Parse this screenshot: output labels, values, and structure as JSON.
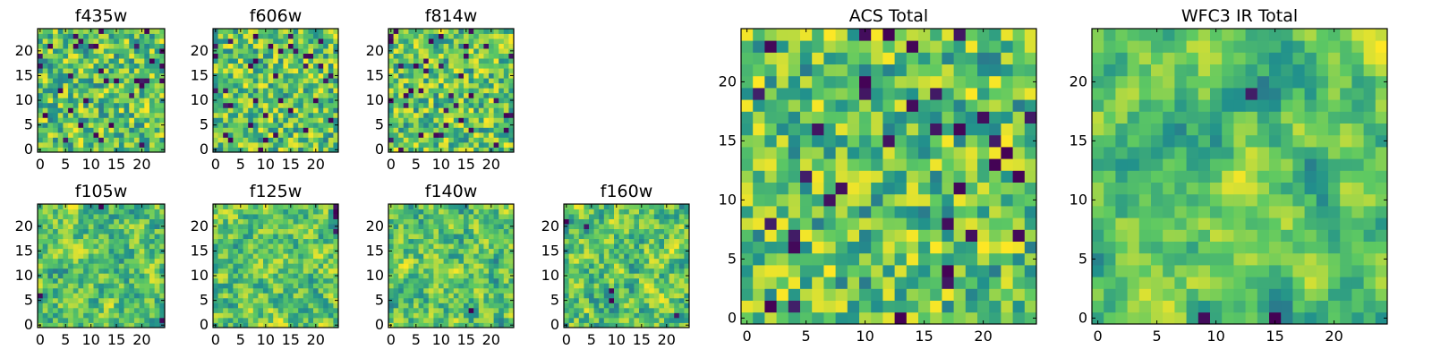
{
  "figure": {
    "colormap": "viridis",
    "colormap_stops": [
      "#440154",
      "#3b528b",
      "#21918c",
      "#5ec962",
      "#fde725"
    ]
  },
  "chart_data": [
    {
      "type": "heatmap",
      "title": "f435w",
      "grid": [
        25,
        25
      ],
      "xticks": [
        "0",
        "5",
        "10",
        "15",
        "20"
      ],
      "yticks": [
        "0",
        "5",
        "10",
        "15",
        "20"
      ],
      "xlim": [
        0,
        25
      ],
      "ylim": [
        0,
        25
      ],
      "value_range": [
        0,
        1
      ],
      "texture_seed": 11,
      "smoothness": 0
    },
    {
      "type": "heatmap",
      "title": "f606w",
      "grid": [
        25,
        25
      ],
      "xticks": [
        "0",
        "5",
        "10",
        "15",
        "20"
      ],
      "yticks": [
        "0",
        "5",
        "10",
        "15",
        "20"
      ],
      "xlim": [
        0,
        25
      ],
      "ylim": [
        0,
        25
      ],
      "value_range": [
        0,
        1
      ],
      "texture_seed": 23,
      "smoothness": 0
    },
    {
      "type": "heatmap",
      "title": "f814w",
      "grid": [
        25,
        25
      ],
      "xticks": [
        "0",
        "5",
        "10",
        "15",
        "20"
      ],
      "yticks": [
        "0",
        "5",
        "10",
        "15",
        "20"
      ],
      "xlim": [
        0,
        25
      ],
      "ylim": [
        0,
        25
      ],
      "value_range": [
        0,
        1
      ],
      "texture_seed": 37,
      "smoothness": 0
    },
    {
      "type": "heatmap",
      "title": "f105w",
      "grid": [
        25,
        25
      ],
      "xticks": [
        "0",
        "5",
        "10",
        "15",
        "20"
      ],
      "yticks": [
        "0",
        "5",
        "10",
        "15",
        "20"
      ],
      "xlim": [
        0,
        25
      ],
      "ylim": [
        0,
        25
      ],
      "value_range": [
        0,
        1
      ],
      "texture_seed": 41,
      "smoothness": 1
    },
    {
      "type": "heatmap",
      "title": "f125w",
      "grid": [
        25,
        25
      ],
      "xticks": [
        "0",
        "5",
        "10",
        "15",
        "20"
      ],
      "yticks": [
        "0",
        "5",
        "10",
        "15",
        "20"
      ],
      "xlim": [
        0,
        25
      ],
      "ylim": [
        0,
        25
      ],
      "value_range": [
        0,
        1
      ],
      "texture_seed": 53,
      "smoothness": 1
    },
    {
      "type": "heatmap",
      "title": "f140w",
      "grid": [
        25,
        25
      ],
      "xticks": [
        "0",
        "5",
        "10",
        "15",
        "20"
      ],
      "yticks": [
        "0",
        "5",
        "10",
        "15",
        "20"
      ],
      "xlim": [
        0,
        25
      ],
      "ylim": [
        0,
        25
      ],
      "value_range": [
        0,
        1
      ],
      "texture_seed": 67,
      "smoothness": 1
    },
    {
      "type": "heatmap",
      "title": "f160w",
      "grid": [
        25,
        25
      ],
      "xticks": [
        "0",
        "5",
        "10",
        "15",
        "20"
      ],
      "yticks": [
        "0",
        "5",
        "10",
        "15",
        "20"
      ],
      "xlim": [
        0,
        25
      ],
      "ylim": [
        0,
        25
      ],
      "value_range": [
        0,
        1
      ],
      "texture_seed": 79,
      "smoothness": 1
    },
    {
      "type": "heatmap",
      "title": "ACS Total",
      "grid": [
        25,
        25
      ],
      "xticks": [
        "0",
        "5",
        "10",
        "15",
        "20"
      ],
      "yticks": [
        "0",
        "5",
        "10",
        "15",
        "20"
      ],
      "xlim": [
        0,
        25
      ],
      "ylim": [
        0,
        25
      ],
      "value_range": [
        0,
        1
      ],
      "texture_seed": 97,
      "smoothness": 0
    },
    {
      "type": "heatmap",
      "title": "WFC3 IR Total",
      "grid": [
        25,
        25
      ],
      "xticks": [
        "0",
        "5",
        "10",
        "15",
        "20"
      ],
      "yticks": [
        "0",
        "5",
        "10",
        "15",
        "20"
      ],
      "xlim": [
        0,
        25
      ],
      "ylim": [
        0,
        25
      ],
      "value_range": [
        0,
        1
      ],
      "texture_seed": 101,
      "smoothness": 2
    }
  ]
}
